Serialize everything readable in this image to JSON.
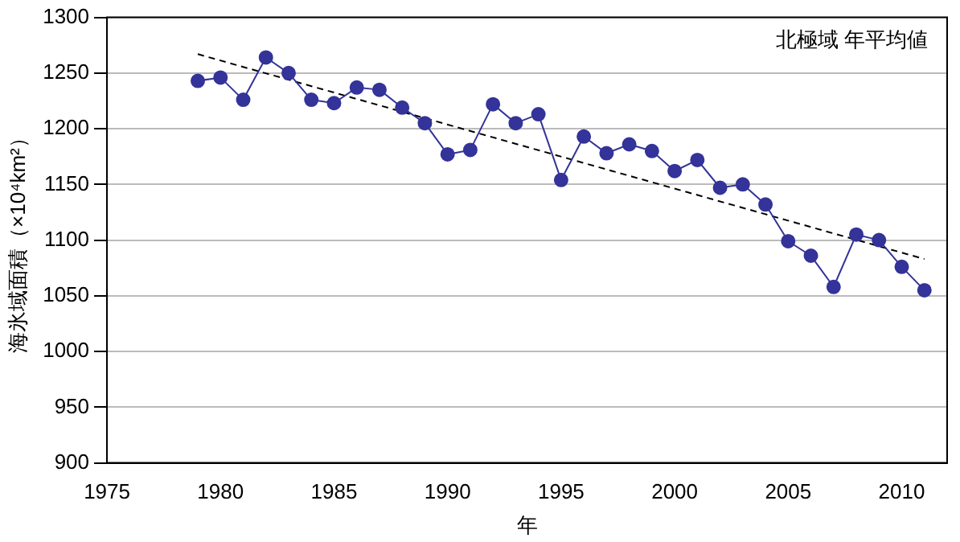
{
  "chart_data": {
    "type": "line",
    "xlabel": "年",
    "ylabel": "海氷域面積（×10⁴km²）",
    "annotations": [
      "北極域 年平均値"
    ],
    "x": [
      1979,
      1980,
      1981,
      1982,
      1983,
      1984,
      1985,
      1986,
      1987,
      1988,
      1989,
      1990,
      1991,
      1992,
      1993,
      1994,
      1995,
      1996,
      1997,
      1998,
      1999,
      2000,
      2001,
      2002,
      2003,
      2004,
      2005,
      2006,
      2007,
      2008,
      2009,
      2010,
      2011
    ],
    "series": [
      {
        "color": "#333399",
        "values": [
          1243,
          1246,
          1226,
          1264,
          1250,
          1226,
          1223,
          1237,
          1235,
          1219,
          1205,
          1177,
          1181,
          1222,
          1205,
          1213,
          1154,
          1193,
          1178,
          1186,
          1180,
          1162,
          1172,
          1147,
          1150,
          1132,
          1099,
          1086,
          1058,
          1105,
          1100,
          1076,
          1055
        ]
      },
      {
        "type": "line",
        "color": "#000000",
        "x": [
          1979,
          2011
        ],
        "values": [
          1267,
          1083
        ],
        "line_style": "dashed",
        "marker": "none"
      }
    ],
    "xlim": [
      1975,
      2012
    ],
    "xticks": [
      1975,
      1980,
      1985,
      1990,
      1995,
      2000,
      2005,
      2010
    ],
    "ylim": [
      900,
      1300
    ],
    "yticks": [
      900,
      950,
      1000,
      1050,
      1100,
      1150,
      1200,
      1250,
      1300
    ],
    "grid": "y",
    "legend": false,
    "marker": "circle",
    "line_style": "solid"
  }
}
